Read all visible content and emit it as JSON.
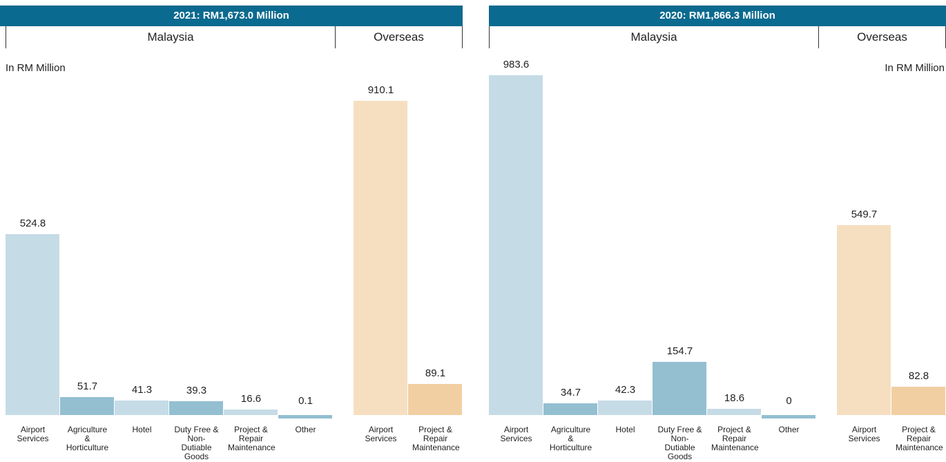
{
  "chart_data": [
    {
      "type": "bar",
      "title": "2021: RM1,673.0 Million",
      "axis_label": "In RM Million",
      "ylim": [
        0,
        1000
      ],
      "groups": [
        {
          "name": "Malaysia",
          "categories": [
            "Airport Services",
            "Agriculture & Horticulture",
            "Hotel",
            "Duty Free & Non- Dutiable Goods",
            "Project & Repair Maintenance",
            "Other"
          ],
          "values": [
            524.8,
            51.7,
            41.3,
            39.3,
            16.6,
            0.1
          ],
          "colors": [
            "#c5dbe6",
            "#93bfd1",
            "#c5dbe6",
            "#93bfd1",
            "#c5dbe6",
            "#93bfd1"
          ]
        },
        {
          "name": "Overseas",
          "categories": [
            "Airport Services",
            "Project & Repair Maintenance"
          ],
          "values": [
            910.1,
            89.1
          ],
          "colors": [
            "#f6dfc0",
            "#f2cfa2"
          ]
        }
      ]
    },
    {
      "type": "bar",
      "title": "2020: RM1,866.3 Million",
      "axis_label": "In RM Million",
      "ylim": [
        0,
        1000
      ],
      "groups": [
        {
          "name": "Malaysia",
          "categories": [
            "Airport Services",
            "Agriculture & Horticulture",
            "Hotel",
            "Duty Free & Non- Dutiable Goods",
            "Project & Repair Maintenance",
            "Other"
          ],
          "values": [
            983.6,
            34.7,
            42.3,
            154.7,
            18.6,
            0
          ],
          "colors": [
            "#c5dbe6",
            "#93bfd1",
            "#c5dbe6",
            "#93bfd1",
            "#c5dbe6",
            "#93bfd1"
          ]
        },
        {
          "name": "Overseas",
          "categories": [
            "Airport Services",
            "Project & Repair Maintenance"
          ],
          "values": [
            549.7,
            82.8
          ],
          "colors": [
            "#f6dfc0",
            "#f2cfa2"
          ]
        }
      ]
    }
  ]
}
